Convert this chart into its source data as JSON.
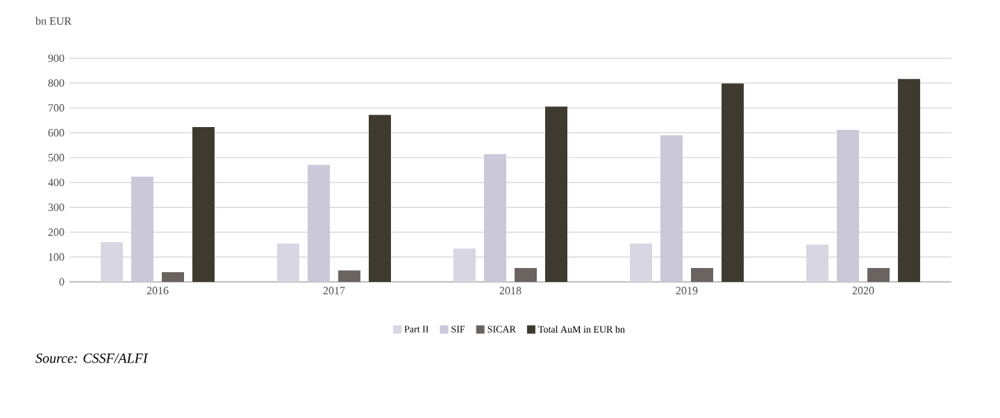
{
  "chart_data": {
    "type": "bar",
    "ylabel": "bn EUR",
    "categories": [
      "2016",
      "2017",
      "2018",
      "2019",
      "2020"
    ],
    "series": [
      {
        "name": "Part II",
        "color": "#d9d6e3",
        "values": [
          160,
          154,
          134,
          154,
          150
        ]
      },
      {
        "name": "SIF",
        "color": "#cbc8da",
        "values": [
          423,
          471,
          514,
          590,
          612
        ]
      },
      {
        "name": "SICAR",
        "color": "#6b6360",
        "values": [
          39,
          46,
          56,
          56,
          56
        ]
      },
      {
        "name": "Total AuM in EUR bn",
        "color": "#3f3a30",
        "values": [
          623,
          672,
          705,
          798,
          816
        ]
      }
    ],
    "ylim": [
      0,
      900
    ],
    "yticks": [
      0,
      100,
      200,
      300,
      400,
      500,
      600,
      700,
      800,
      900
    ],
    "grid": "y",
    "legend": "bottom",
    "annotations": [
      "*Source: CSSF/ALFI*"
    ]
  }
}
